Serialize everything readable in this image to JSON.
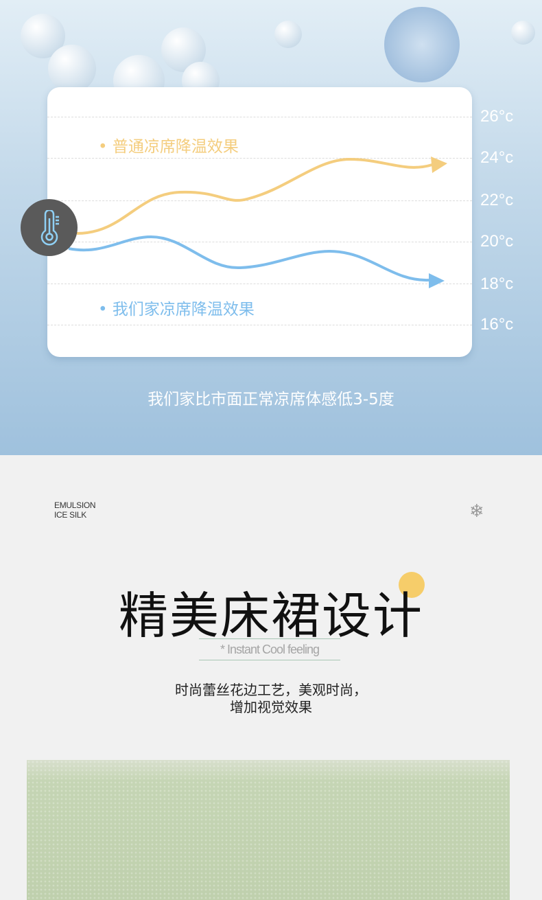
{
  "chart": {
    "ticks": [
      "26°c",
      "24°c",
      "22°c",
      "20°c",
      "18°c",
      "16°c"
    ],
    "legend_normal": "普通凉席降温效果",
    "legend_ours": "我们家凉席降温效果",
    "colors": {
      "normal": "#f4cd7e",
      "ours": "#7ebdec"
    },
    "icon": "thermometer-icon"
  },
  "caption": "我们家比市面正常凉席体感低3-5度",
  "brand": {
    "line1": "EMULSION",
    "line2": "ICE SILK"
  },
  "title": "精美床裙设计",
  "subtitle": "* Instant Cool feeling",
  "desc_line1": "时尚蕾丝花边工艺，美观时尚，",
  "desc_line2": "增加视觉效果"
}
